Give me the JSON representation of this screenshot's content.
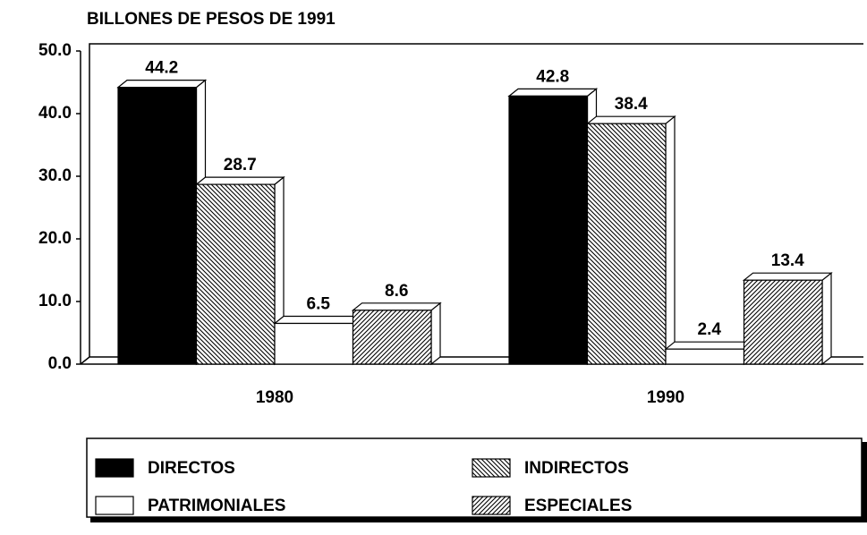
{
  "chart_data": {
    "type": "bar3d",
    "title": "BILLONES DE PESOS DE 1991",
    "categories": [
      "1980",
      "1990"
    ],
    "series": [
      {
        "name": "DIRECTOS",
        "color": "#000000",
        "pattern": "solid",
        "values": [
          44.2,
          42.8
        ]
      },
      {
        "name": "INDIRECTOS",
        "color": "#000000",
        "pattern": "backslash",
        "values": [
          28.7,
          38.4
        ]
      },
      {
        "name": "PATRIMONIALES",
        "color": "#ffffff",
        "pattern": "solid",
        "values": [
          6.5,
          2.4
        ]
      },
      {
        "name": "ESPECIALES",
        "color": "#000000",
        "pattern": "slash",
        "values": [
          8.6,
          13.4
        ]
      }
    ],
    "ylim": [
      0,
      50
    ],
    "yticks": [
      {
        "value": 0,
        "label": "0.0"
      },
      {
        "value": 10,
        "label": "10.0"
      },
      {
        "value": 20,
        "label": "20.0"
      },
      {
        "value": 30,
        "label": "30.0"
      },
      {
        "value": 40,
        "label": "40.0"
      },
      {
        "value": 50,
        "label": "50.0"
      }
    ],
    "legend": "bottom"
  }
}
